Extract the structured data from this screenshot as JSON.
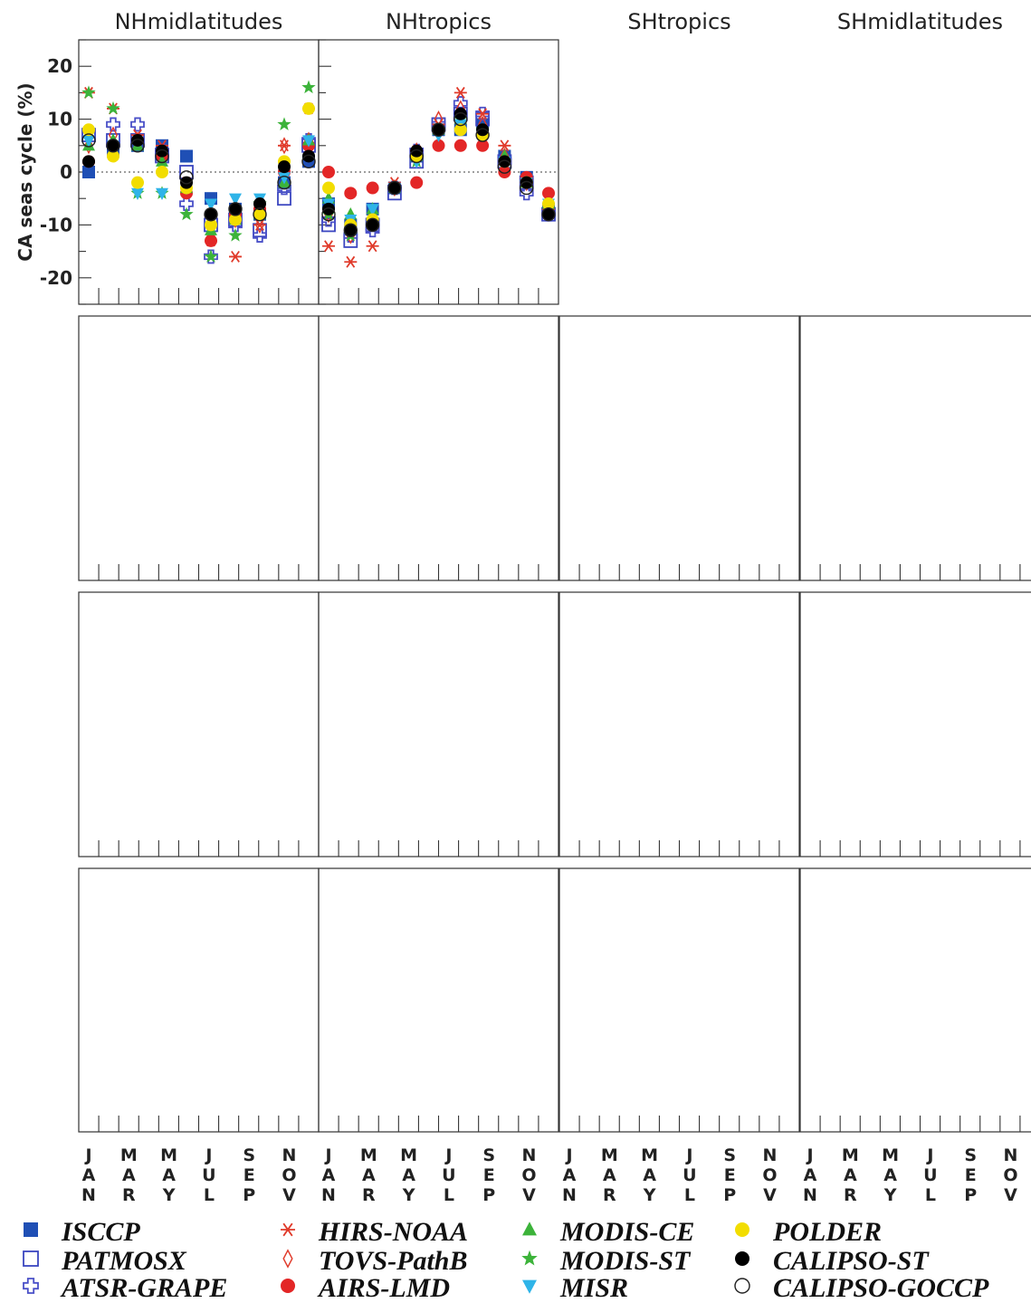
{
  "chart_data": {
    "type": "scatter",
    "columns": [
      "NHmidlatitudes",
      "NHtropics",
      "SHtropics",
      "SHmidlatitudes"
    ],
    "months": [
      {
        "label": "JAN",
        "letters": [
          "J",
          "A",
          "N"
        ]
      },
      {
        "label": "MAR",
        "letters": [
          "M",
          "A",
          "R"
        ]
      },
      {
        "label": "MAY",
        "letters": [
          "M",
          "A",
          "Y"
        ]
      },
      {
        "label": "JUL",
        "letters": [
          "J",
          "U",
          "L"
        ]
      },
      {
        "label": "SEP",
        "letters": [
          "S",
          "E",
          "P"
        ]
      },
      {
        "label": "NOV",
        "letters": [
          "N",
          "O",
          "V"
        ]
      }
    ],
    "datasets": [
      {
        "name": "ISCCP",
        "marker": "square-filled",
        "color": "#1f4fb5"
      },
      {
        "name": "PATMOSX",
        "marker": "square-open",
        "color": "#3b46c0"
      },
      {
        "name": "ATSR-GRAPE",
        "marker": "cross-open",
        "color": "#4a50c8"
      },
      {
        "name": "HIRS-NOAA",
        "marker": "asterisk",
        "color": "#e03a2a"
      },
      {
        "name": "TOVS-PathB",
        "marker": "diamond-open",
        "color": "#e03a2a"
      },
      {
        "name": "AIRS-LMD",
        "marker": "circle-filled",
        "color": "#e32626"
      },
      {
        "name": "MODIS-CE",
        "marker": "triangle-up-filled",
        "color": "#3cb33a"
      },
      {
        "name": "MODIS-ST",
        "marker": "star-filled",
        "color": "#3cb33a"
      },
      {
        "name": "MISR",
        "marker": "triangle-down-filled",
        "color": "#2fb4e8"
      },
      {
        "name": "POLDER",
        "marker": "circle-filled",
        "color": "#f2dd00"
      },
      {
        "name": "CALIPSO-ST",
        "marker": "circle-filled",
        "color": "#000000"
      },
      {
        "name": "CALIPSO-GOCCP",
        "marker": "circle-open",
        "color": "#222222"
      }
    ],
    "rows": [
      {
        "ylabel": "CA seas cycle (%)",
        "ylim": [
          -25,
          25
        ],
        "yticks": [
          -20,
          -10,
          0,
          10,
          20
        ],
        "panels": [
          {
            "ISCCP": [
              0,
              4,
              5,
              5,
              3,
              -5,
              -7,
              -8,
              -2,
              2
            ],
            "PATMOSX": [
              7,
              6,
              6,
              3,
              0,
              -10,
              -9,
              -11,
              -5,
              5
            ],
            "ATSR-GRAPE": [
              7,
              9,
              9,
              4,
              -6,
              -16,
              -10,
              -12,
              -3,
              6
            ],
            "HIRS-NOAA": [
              15,
              12,
              7,
              5,
              -2,
              -13,
              -16,
              -10,
              5,
              12
            ],
            "TOVS-PathB": [
              5,
              7,
              6,
              3,
              -3,
              -10,
              -9,
              -10,
              5,
              6
            ],
            "AIRS-LMD": [
              2,
              5,
              6,
              3,
              -4,
              -13,
              -8,
              -7,
              0,
              5
            ],
            "MODIS-CE": [
              5,
              6,
              5,
              2,
              -3,
              -11,
              -9,
              -8,
              -2,
              6
            ],
            "MODIS-ST": [
              15,
              12,
              -4,
              -4,
              -8,
              -16,
              -12,
              -6,
              9,
              16
            ],
            "MISR": [
              6,
              5,
              -4,
              -4,
              -3,
              -6,
              -5,
              -5,
              -1,
              6
            ],
            "POLDER": [
              8,
              3,
              -2,
              0,
              -3,
              -10,
              -9,
              -8,
              2,
              12
            ],
            "CALIPSO-ST": [
              2,
              5,
              6,
              4,
              -2,
              -8,
              -7,
              -6,
              1,
              3
            ],
            "CALIPSO-GOCCP": [
              6,
              5,
              5,
              3,
              -1,
              -8,
              -7,
              -8,
              -2,
              2
            ]
          },
          {
            "ISCCP": [
              -6,
              -10,
              -7,
              -3,
              3,
              8,
              8,
              9,
              3,
              -1,
              -7
            ],
            "PATMOSX": [
              -10,
              -13,
              -10,
              -4,
              2,
              9,
              11,
              10,
              2,
              -2,
              -8
            ],
            "ATSR-GRAPE": [
              -9,
              -12,
              -11,
              -3,
              4,
              9,
              13,
              11,
              2,
              -4,
              -8
            ],
            "HIRS-NOAA": [
              -14,
              -17,
              -14,
              -2,
              4,
              9,
              15,
              11,
              5,
              -2,
              -7
            ],
            "TOVS-PathB": [
              -8,
              -12,
              -9,
              -3,
              4,
              10,
              12,
              9,
              3,
              -2,
              -7
            ],
            "AIRS-LMD": [
              0,
              -4,
              -3,
              -3,
              -2,
              5,
              5,
              5,
              0,
              -1,
              -4
            ],
            "MODIS-CE": [
              -5,
              -8,
              -7,
              -3,
              3,
              8,
              10,
              8,
              3,
              -2,
              -6
            ],
            "MODIS-ST": [
              -8,
              -12,
              -10,
              -3,
              2,
              8,
              10,
              8,
              2,
              -2,
              -7
            ],
            "MISR": [
              -6,
              -9,
              -7,
              -3,
              2,
              7,
              9,
              7,
              2,
              -2,
              -6
            ],
            "POLDER": [
              -3,
              -10,
              -9,
              -3,
              3,
              8,
              8,
              7,
              2,
              -2,
              -6
            ],
            "CALIPSO-ST": [
              -7,
              -11,
              -10,
              -3,
              4,
              8,
              11,
              8,
              2,
              -2,
              -8
            ],
            "CALIPSO-GOCCP": [
              -8,
              -11,
              -10,
              -3,
              3,
              8,
              10,
              7,
              1,
              -3,
              -8
            ]
          }
        ]
      }
    ],
    "legend_placement": "bottom"
  }
}
